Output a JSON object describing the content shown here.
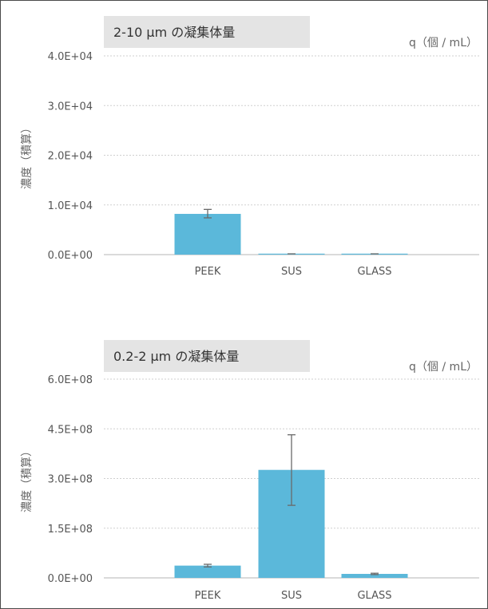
{
  "colors": {
    "bar": "#5bb8da",
    "grid": "#cfcfcf",
    "title_box": "#e4e4e4",
    "error_bar": "#6a6a6a"
  },
  "chart_data": [
    {
      "type": "bar",
      "title": "2-10 µm の凝集体量",
      "unit": "q（個 / mL）",
      "ylabel": "濃度（積算）",
      "categories": [
        "PEEK",
        "SUS",
        "GLASS"
      ],
      "values": [
        8200,
        150,
        60
      ],
      "errors": [
        [
          7400,
          9100
        ],
        null,
        null
      ],
      "ylim": [
        0,
        40000
      ],
      "yticks": [
        "0.0E+00",
        "1.0E+04",
        "2.0E+04",
        "3.0E+04",
        "4.0E+04"
      ],
      "grid": true
    },
    {
      "type": "bar",
      "title": "0.2-2 µm の凝集体量",
      "unit": "q（個 / mL）",
      "ylabel": "濃度（積算）",
      "categories": [
        "PEEK",
        "SUS",
        "GLASS"
      ],
      "values": [
        37000000,
        326000000,
        12000000
      ],
      "errors": [
        [
          33000000,
          41000000
        ],
        [
          219000000,
          432000000
        ],
        [
          10000000,
          14000000
        ]
      ],
      "ylim": [
        0,
        600000000
      ],
      "yticks": [
        "0.0E+00",
        "1.5E+08",
        "3.0E+08",
        "4.5E+08",
        "6.0E+08"
      ],
      "grid": true
    }
  ]
}
